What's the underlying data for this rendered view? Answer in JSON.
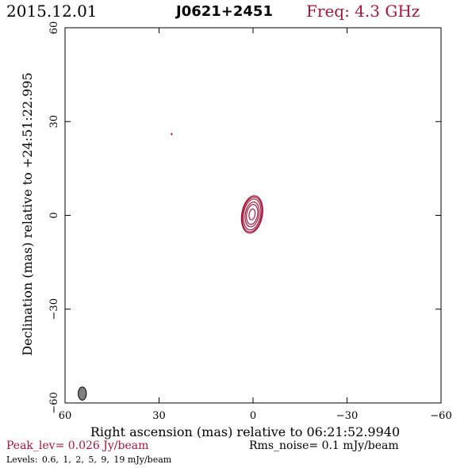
{
  "header": {
    "date": "2015.12.01",
    "source": "J0621+2451",
    "frequency": "Freq: 4.3 GHz"
  },
  "chart_data": {
    "type": "contour",
    "xlabel": "Right ascension (mas) relative to 06:21:52.9940",
    "ylabel": "Declination (mas) relative to +24:51:22.995",
    "xlim": [
      60,
      -60
    ],
    "ylim": [
      -60,
      60
    ],
    "xticks": [
      60,
      30,
      0,
      -30,
      -60
    ],
    "yticks": [
      -60,
      -30,
      0,
      30,
      60
    ],
    "xtick_labels": [
      "60",
      "30",
      "0",
      "−30",
      "−60"
    ],
    "ytick_labels": [
      "−60",
      "−30",
      "0",
      "30",
      "60"
    ],
    "contour_levels_mjy": [
      0.6,
      1,
      2,
      5,
      9,
      19
    ],
    "component": {
      "x": 0.3,
      "y": 0.3,
      "sigma_x": 1.2,
      "sigma_y": 2.2,
      "pa_deg": 10
    },
    "spurious_points": [
      {
        "x": 26,
        "y": 26
      }
    ],
    "beam": {
      "x": 54.5,
      "y": -57,
      "major": 4.2,
      "minor": 2.6,
      "pa_deg": 0
    },
    "contour_color": "#a0183c",
    "beam_color": "#808080"
  },
  "footer": {
    "peak": "Peak_lev=  0.026 Jy/beam",
    "rms": "Rms_noise=  0.1 mJy/beam",
    "levels_label": "Levels:",
    "levels": [
      "0.6,",
      "1,",
      "2,",
      "5,",
      "9,",
      "19 mJy/beam"
    ]
  }
}
